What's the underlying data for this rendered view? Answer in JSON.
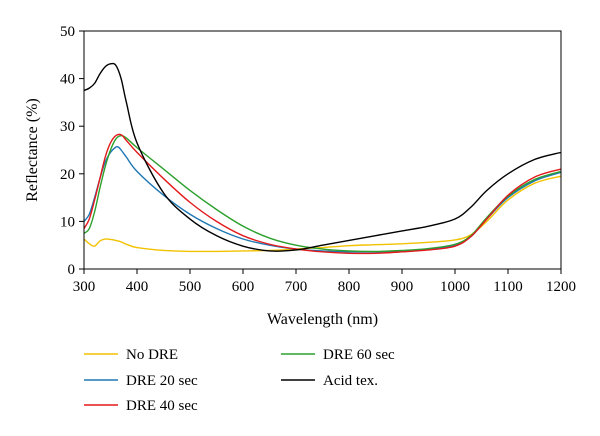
{
  "chart_data": {
    "type": "line",
    "title": "",
    "xlabel": "Wavelength (nm)",
    "ylabel": "Reflectance (%)",
    "xlim": [
      300,
      1200
    ],
    "ylim": [
      0,
      50
    ],
    "xticks": [
      300,
      400,
      500,
      600,
      700,
      800,
      900,
      1000,
      1100,
      1200
    ],
    "yticks": [
      0,
      10,
      20,
      30,
      40,
      50
    ],
    "grid": false,
    "legend_position": "bottom",
    "series": [
      {
        "name": "No DRE",
        "color": "#f2c200",
        "points": [
          [
            300,
            6.3
          ],
          [
            310,
            5.3
          ],
          [
            320,
            4.8
          ],
          [
            330,
            5.9
          ],
          [
            340,
            6.3
          ],
          [
            350,
            6.2
          ],
          [
            360,
            6.0
          ],
          [
            370,
            5.7
          ],
          [
            380,
            5.2
          ],
          [
            400,
            4.5
          ],
          [
            450,
            3.9
          ],
          [
            500,
            3.7
          ],
          [
            550,
            3.7
          ],
          [
            600,
            3.8
          ],
          [
            650,
            3.9
          ],
          [
            700,
            4.2
          ],
          [
            750,
            4.5
          ],
          [
            800,
            4.9
          ],
          [
            850,
            5.1
          ],
          [
            900,
            5.3
          ],
          [
            950,
            5.6
          ],
          [
            1000,
            6.1
          ],
          [
            1030,
            7.2
          ],
          [
            1060,
            10.0
          ],
          [
            1100,
            14.5
          ],
          [
            1150,
            18.0
          ],
          [
            1200,
            19.5
          ]
        ]
      },
      {
        "name": "DRE 20 sec",
        "color": "#1f77b4",
        "points": [
          [
            300,
            10.0
          ],
          [
            310,
            11.5
          ],
          [
            320,
            15.0
          ],
          [
            330,
            19.0
          ],
          [
            340,
            22.5
          ],
          [
            350,
            24.5
          ],
          [
            360,
            25.6
          ],
          [
            365,
            25.6
          ],
          [
            370,
            25.0
          ],
          [
            380,
            23.5
          ],
          [
            400,
            20.5
          ],
          [
            450,
            15.5
          ],
          [
            500,
            11.5
          ],
          [
            550,
            8.5
          ],
          [
            600,
            6.3
          ],
          [
            650,
            5.0
          ],
          [
            700,
            4.2
          ],
          [
            750,
            3.8
          ],
          [
            800,
            3.6
          ],
          [
            850,
            3.6
          ],
          [
            900,
            3.8
          ],
          [
            950,
            4.2
          ],
          [
            1000,
            5.0
          ],
          [
            1030,
            6.8
          ],
          [
            1060,
            10.5
          ],
          [
            1100,
            15.0
          ],
          [
            1150,
            18.5
          ],
          [
            1200,
            20.3
          ]
        ]
      },
      {
        "name": "DRE 40 sec",
        "color": "#e31a1c",
        "points": [
          [
            300,
            8.5
          ],
          [
            310,
            10.5
          ],
          [
            320,
            14.5
          ],
          [
            330,
            19.0
          ],
          [
            340,
            23.5
          ],
          [
            350,
            26.5
          ],
          [
            360,
            28.0
          ],
          [
            370,
            28.2
          ],
          [
            380,
            27.0
          ],
          [
            400,
            24.5
          ],
          [
            450,
            19.0
          ],
          [
            500,
            14.0
          ],
          [
            550,
            10.0
          ],
          [
            600,
            7.0
          ],
          [
            650,
            5.2
          ],
          [
            700,
            4.2
          ],
          [
            750,
            3.6
          ],
          [
            800,
            3.3
          ],
          [
            850,
            3.3
          ],
          [
            900,
            3.6
          ],
          [
            950,
            4.0
          ],
          [
            1000,
            4.8
          ],
          [
            1030,
            6.8
          ],
          [
            1060,
            10.5
          ],
          [
            1100,
            15.5
          ],
          [
            1150,
            19.3
          ],
          [
            1200,
            21.0
          ]
        ]
      },
      {
        "name": "DRE 60 sec",
        "color": "#2ca02c",
        "points": [
          [
            300,
            7.5
          ],
          [
            310,
            8.5
          ],
          [
            320,
            12.0
          ],
          [
            330,
            17.0
          ],
          [
            340,
            21.5
          ],
          [
            350,
            25.0
          ],
          [
            360,
            27.3
          ],
          [
            370,
            28.0
          ],
          [
            380,
            27.5
          ],
          [
            400,
            25.5
          ],
          [
            450,
            21.0
          ],
          [
            500,
            16.5
          ],
          [
            550,
            12.5
          ],
          [
            600,
            9.0
          ],
          [
            650,
            6.5
          ],
          [
            700,
            5.0
          ],
          [
            750,
            4.2
          ],
          [
            800,
            3.8
          ],
          [
            850,
            3.7
          ],
          [
            900,
            3.9
          ],
          [
            950,
            4.3
          ],
          [
            1000,
            5.2
          ],
          [
            1030,
            7.0
          ],
          [
            1060,
            10.8
          ],
          [
            1100,
            15.3
          ],
          [
            1150,
            18.8
          ],
          [
            1200,
            20.5
          ]
        ]
      },
      {
        "name": "Acid tex.",
        "color": "#000000",
        "points": [
          [
            300,
            37.5
          ],
          [
            310,
            38.0
          ],
          [
            320,
            39.0
          ],
          [
            330,
            41.0
          ],
          [
            340,
            42.5
          ],
          [
            350,
            43.1
          ],
          [
            360,
            42.8
          ],
          [
            370,
            40.0
          ],
          [
            380,
            35.0
          ],
          [
            400,
            26.5
          ],
          [
            450,
            16.0
          ],
          [
            500,
            10.5
          ],
          [
            550,
            7.0
          ],
          [
            600,
            4.8
          ],
          [
            650,
            3.8
          ],
          [
            700,
            4.0
          ],
          [
            750,
            5.0
          ],
          [
            800,
            6.0
          ],
          [
            850,
            7.0
          ],
          [
            900,
            8.0
          ],
          [
            950,
            9.0
          ],
          [
            1000,
            10.5
          ],
          [
            1030,
            13.0
          ],
          [
            1060,
            16.5
          ],
          [
            1100,
            20.0
          ],
          [
            1150,
            23.0
          ],
          [
            1200,
            24.5
          ]
        ]
      }
    ]
  }
}
